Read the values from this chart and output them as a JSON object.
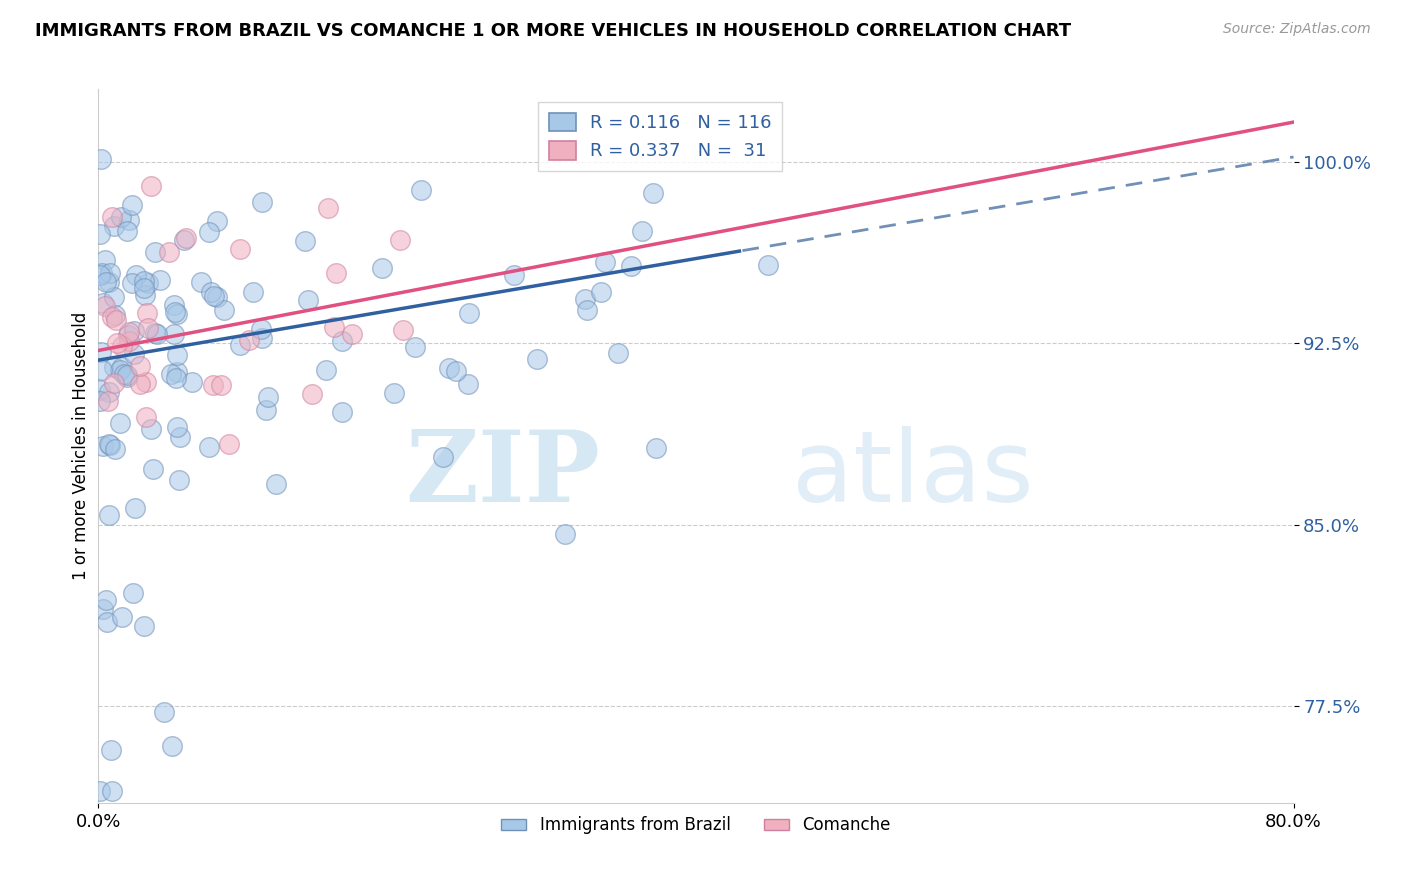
{
  "title": "IMMIGRANTS FROM BRAZIL VS COMANCHE 1 OR MORE VEHICLES IN HOUSEHOLD CORRELATION CHART",
  "source": "Source: ZipAtlas.com",
  "ylabel": "1 or more Vehicles in Household",
  "y_ticks_right": [
    77.5,
    85.0,
    92.5,
    100.0
  ],
  "y_tick_labels_right": [
    "77.5%",
    "85.0%",
    "92.5%",
    "100.0%"
  ],
  "x_ticks": [
    0.0,
    80.0
  ],
  "x_tick_labels": [
    "0.0%",
    "80.0%"
  ],
  "xlim": [
    0.0,
    80.0
  ],
  "ylim": [
    73.5,
    103.0
  ],
  "blue_fill": "#a8c8e8",
  "blue_edge": "#7090b8",
  "pink_fill": "#f0b0c0",
  "pink_edge": "#d080a0",
  "trend_blue_solid_color": "#3060a0",
  "trend_blue_dash_color": "#7090b8",
  "trend_pink_color": "#e05080",
  "legend_R_blue": "0.116",
  "legend_N_blue": "116",
  "legend_R_pink": "0.337",
  "legend_N_pink": "31",
  "legend_label_blue": "Immigrants from Brazil",
  "legend_label_pink": "Comanche",
  "watermark_zip": "ZIP",
  "watermark_atlas": "atlas",
  "title_fontsize": 13,
  "source_fontsize": 10,
  "tick_fontsize": 13,
  "legend_fontsize": 13,
  "ylabel_fontsize": 12,
  "scatter_size": 200,
  "scatter_alpha": 0.55,
  "grid_color": "#cccccc",
  "legend_text_color": "#3060a0",
  "blue_trend_intercept": 91.8,
  "blue_trend_slope": 0.105,
  "pink_trend_intercept": 92.2,
  "pink_trend_slope": 0.118,
  "blue_solid_end_x": 43.0
}
